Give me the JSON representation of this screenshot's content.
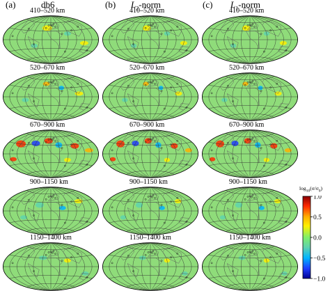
{
  "columns": [
    {
      "letter": "(a)",
      "title": "db6"
    },
    {
      "letter": "(b)",
      "title_main": "L",
      "title_sub": "2",
      "title_tail": "-norm"
    },
    {
      "letter": "(c)",
      "title_main": "L",
      "title_sub": "1",
      "title_tail": "-norm"
    }
  ],
  "rows": [
    {
      "depth": "410–520 km"
    },
    {
      "depth": "520–670 km"
    },
    {
      "depth": "670–900 km"
    },
    {
      "depth": "900–1150 km"
    },
    {
      "depth": "1150–1400 km"
    }
  ],
  "colorbar": {
    "title": "log10(σ/σ0)",
    "title_parts": {
      "pre": "log",
      "sub": "10",
      "mid": "(σ/σ",
      "sub2": "0",
      "post": ")"
    },
    "ticks": [
      "1.0",
      "0.5",
      "0.0",
      "−0.5",
      "−1.0"
    ],
    "range": [
      -1.0,
      1.0
    ],
    "colors": [
      "#8b0000",
      "#ff2a00",
      "#ffb000",
      "#fff000",
      "#7fef6a",
      "#5fd3ad",
      "#00b4ff",
      "#1e3cff",
      "#000090"
    ]
  },
  "map_style": {
    "background": "#8fdc7a",
    "grid": "#303030",
    "continent": "#606060"
  }
}
